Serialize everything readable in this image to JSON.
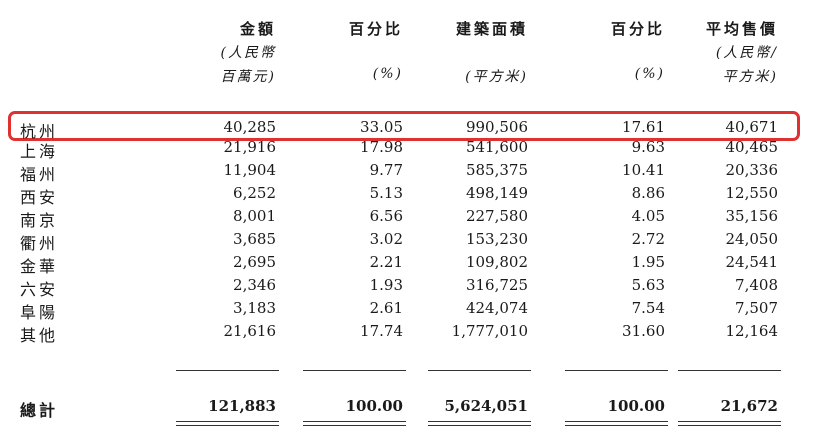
{
  "headers": [
    {
      "label": "金額",
      "sub1": "(人民幣",
      "sub2": "百萬元)"
    },
    {
      "label": "百分比",
      "sub1": "",
      "sub2": "(%)"
    },
    {
      "label": "建築面積",
      "sub1": "",
      "sub2": "(平方米)"
    },
    {
      "label": "百分比",
      "sub1": "",
      "sub2": "(%)"
    },
    {
      "label": "平均售價",
      "sub1": "(人民幣/",
      "sub2": "平方米)"
    }
  ],
  "rows": [
    {
      "city": "杭州",
      "values": [
        "40,285",
        "33.05",
        "990,506",
        "17.61",
        "40,671"
      ]
    },
    {
      "city": "上海",
      "values": [
        "21,916",
        "17.98",
        "541,600",
        "9.63",
        "40,465"
      ]
    },
    {
      "city": "福州",
      "values": [
        "11,904",
        "9.77",
        "585,375",
        "10.41",
        "20,336"
      ]
    },
    {
      "city": "西安",
      "values": [
        "6,252",
        "5.13",
        "498,149",
        "8.86",
        "12,550"
      ]
    },
    {
      "city": "南京",
      "values": [
        "8,001",
        "6.56",
        "227,580",
        "4.05",
        "35,156"
      ]
    },
    {
      "city": "衢州",
      "values": [
        "3,685",
        "3.02",
        "153,230",
        "2.72",
        "24,050"
      ]
    },
    {
      "city": "金華",
      "values": [
        "2,695",
        "2.21",
        "109,802",
        "1.95",
        "24,541"
      ]
    },
    {
      "city": "六安",
      "values": [
        "2,346",
        "1.93",
        "316,725",
        "5.63",
        "7,408"
      ]
    },
    {
      "city": "阜陽",
      "values": [
        "3,183",
        "2.61",
        "424,074",
        "7.54",
        "7,507"
      ]
    },
    {
      "city": "其他",
      "values": [
        "21,616",
        "17.74",
        "1,777,010",
        "31.60",
        "12,164"
      ]
    }
  ],
  "total": {
    "label": "總計",
    "values": [
      "121,883",
      "100.00",
      "5,624,051",
      "100.00",
      "21,672"
    ]
  },
  "highlight": {
    "color": "#e03131",
    "row": "杭州"
  }
}
